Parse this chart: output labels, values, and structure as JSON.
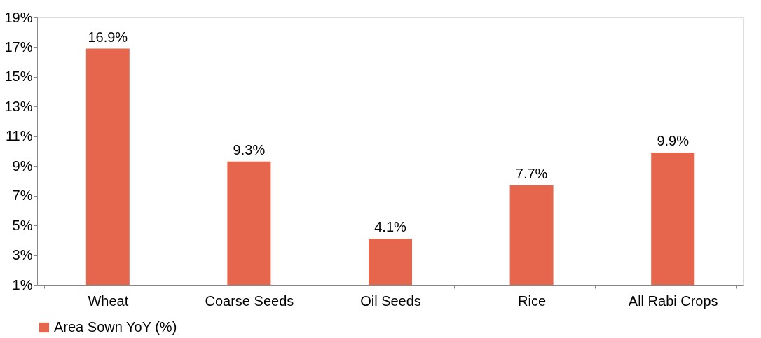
{
  "chart_data": {
    "type": "bar",
    "categories": [
      "Wheat",
      "Coarse Seeds",
      "Oil Seeds",
      "Rice",
      "All Rabi Crops"
    ],
    "series": [
      {
        "name": "Area Sown YoY (%)",
        "color": "#e5654d",
        "values": [
          16.9,
          9.3,
          4.1,
          7.7,
          9.9
        ],
        "value_labels": [
          "16.9%",
          "9.3%",
          "4.1%",
          "7.7%",
          "9.9%"
        ]
      }
    ],
    "ylim": [
      1,
      19
    ],
    "yticks": [
      {
        "value": 1,
        "label": "1%"
      },
      {
        "value": 3,
        "label": "3%"
      },
      {
        "value": 5,
        "label": "5%"
      },
      {
        "value": 7,
        "label": "7%"
      },
      {
        "value": 9,
        "label": "9%"
      },
      {
        "value": 11,
        "label": "11%"
      },
      {
        "value": 13,
        "label": "13%"
      },
      {
        "value": 15,
        "label": "15%"
      },
      {
        "value": 17,
        "label": "17%"
      },
      {
        "value": 19,
        "label": "19%"
      }
    ],
    "grid": false,
    "legend": "bottom"
  }
}
